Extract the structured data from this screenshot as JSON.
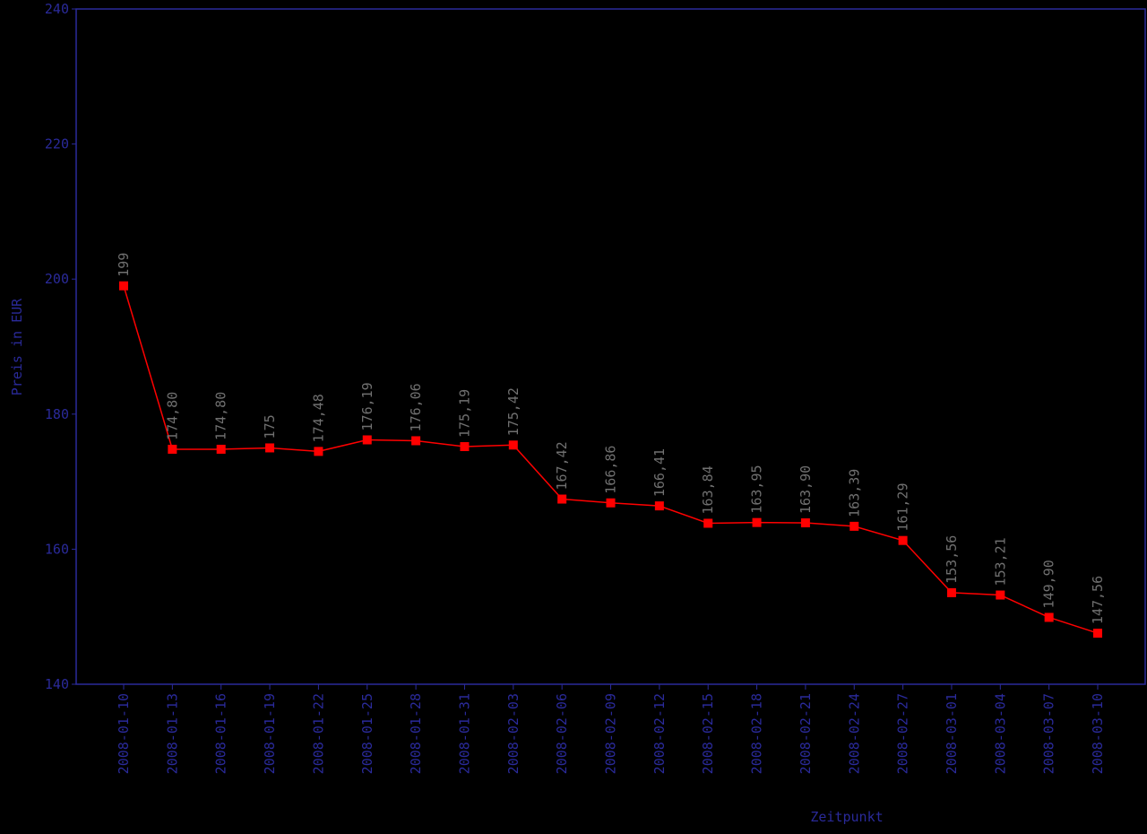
{
  "chart_data": {
    "type": "line",
    "x_label": "Zeitpunkt",
    "y_label": "Preis in EUR",
    "categories": [
      "2008-01-10",
      "2008-01-13",
      "2008-01-16",
      "2008-01-19",
      "2008-01-22",
      "2008-01-25",
      "2008-01-28",
      "2008-01-31",
      "2008-02-03",
      "2008-02-06",
      "2008-02-09",
      "2008-02-12",
      "2008-02-15",
      "2008-02-18",
      "2008-02-21",
      "2008-02-24",
      "2008-02-27",
      "2008-03-01",
      "2008-03-04",
      "2008-03-07",
      "2008-03-10"
    ],
    "series": [
      {
        "color": "#ff0000",
        "values": [
          199,
          174.8,
          174.8,
          175,
          174.48,
          176.19,
          176.06,
          175.19,
          175.42,
          167.42,
          166.86,
          166.41,
          163.84,
          163.95,
          163.9,
          163.39,
          161.29,
          153.56,
          153.21,
          149.9,
          147.56
        ],
        "value_labels": [
          "199",
          "174,80",
          "174,80",
          "175",
          "174,48",
          "176,19",
          "176,06",
          "175,19",
          "175,42",
          "167,42",
          "166,86",
          "166,41",
          "163,84",
          "163,95",
          "163,90",
          "163,39",
          "161,29",
          "153,56",
          "153,21",
          "149,90",
          "147,56"
        ]
      }
    ],
    "ylim": [
      140,
      240
    ],
    "yticks": [
      140,
      160,
      180,
      200,
      220,
      240
    ],
    "axis_color": "#2a2a9a",
    "label_color": "#707070"
  }
}
